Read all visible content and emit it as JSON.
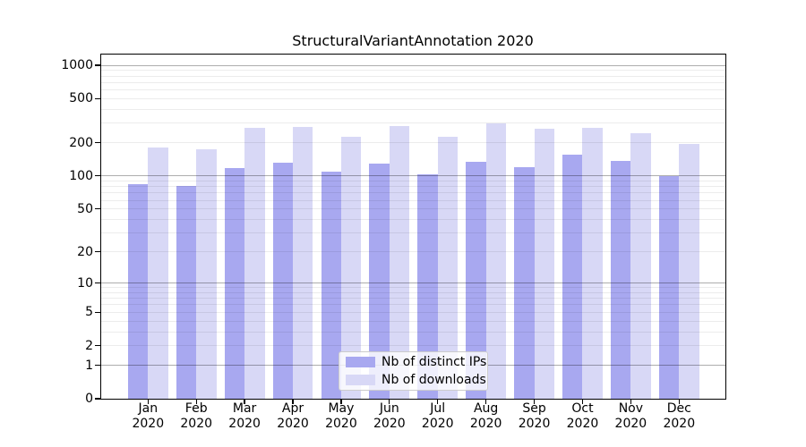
{
  "chart_data": {
    "type": "bar",
    "title": "StructuralVariantAnnotation 2020",
    "categories": [
      "Jan 2020",
      "Feb 2020",
      "Mar 2020",
      "Apr 2020",
      "May 2020",
      "Jun 2020",
      "Jul 2020",
      "Aug 2020",
      "Sep 2020",
      "Oct 2020",
      "Nov 2020",
      "Dec 2020"
    ],
    "series": [
      {
        "name": "Nb of distinct IPs",
        "color": "#a8a8f0",
        "values": [
          85,
          81,
          118,
          132,
          110,
          129,
          103,
          134,
          121,
          155,
          136,
          100
        ]
      },
      {
        "name": "Nb of downloads",
        "color": "#d8d8f6",
        "values": [
          182,
          175,
          273,
          278,
          225,
          285,
          225,
          301,
          268,
          274,
          243,
          195
        ]
      }
    ],
    "yscale": "log1p",
    "ylim": [
      0,
      1250
    ],
    "yticks": [
      0,
      1,
      2,
      5,
      10,
      20,
      50,
      100,
      200,
      500,
      1000
    ],
    "ytick_labels": [
      "0",
      "1",
      "2",
      "5",
      "10",
      "20",
      "50",
      "100",
      "200",
      "500",
      "1000"
    ],
    "major_gridlines": [
      1,
      10,
      100,
      1000
    ],
    "minor_gridlines": [
      2,
      3,
      4,
      5,
      6,
      7,
      8,
      9,
      20,
      30,
      40,
      50,
      60,
      70,
      80,
      90,
      200,
      300,
      400,
      500,
      600,
      700,
      800,
      900
    ],
    "grid": true,
    "legend_position": "lower center"
  },
  "legend": {
    "items": [
      "Nb of distinct IPs",
      "Nb of downloads"
    ]
  }
}
